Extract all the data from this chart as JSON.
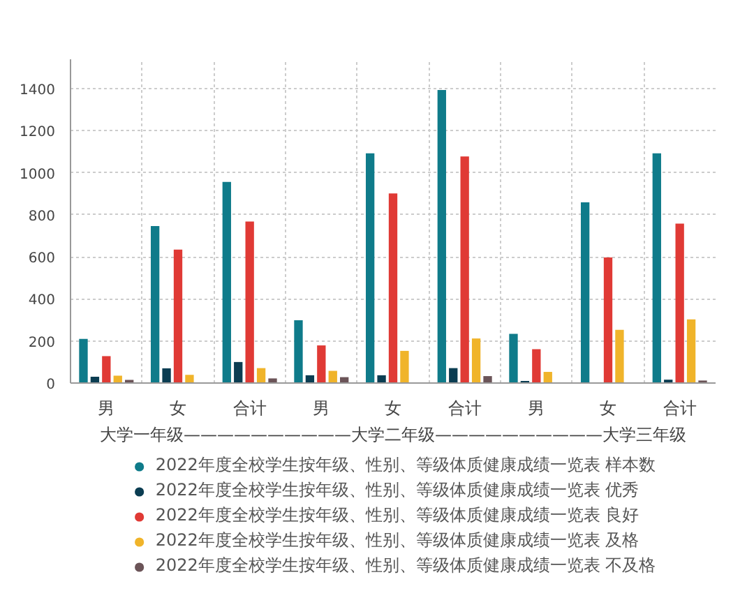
{
  "chart_data": {
    "type": "bar",
    "categories": [
      "男",
      "女",
      "合计",
      "男",
      "女",
      "合计",
      "男",
      "女",
      "合计"
    ],
    "xlabel": "大学一年级——————————大学二年级——————————大学三年级",
    "series": [
      {
        "name": "2022年度全校学生按年级、性别、等级体质健康成绩一览表 样本数",
        "color": "#0f7b8a",
        "values": [
          210,
          747,
          957,
          299,
          1093,
          1394,
          234,
          860,
          1093
        ]
      },
      {
        "name": "2022年度全校学生按年级、性别、等级体质健康成绩一览表 优秀",
        "color": "#0b3d52",
        "values": [
          30,
          70,
          100,
          37,
          37,
          71,
          10,
          0,
          16
        ]
      },
      {
        "name": "2022年度全校学生按年级、性别、等级体质健康成绩一览表 良好",
        "color": "#e03a35",
        "values": [
          128,
          635,
          768,
          179,
          902,
          1078,
          161,
          597,
          758
        ]
      },
      {
        "name": "2022年度全校学生按年级、性别、等级体质健康成绩一览表 及格",
        "color": "#f0b42a",
        "values": [
          35,
          39,
          71,
          58,
          153,
          212,
          53,
          253,
          303
        ]
      },
      {
        "name": "2022年度全校学生按年级、性别、等级体质健康成绩一览表 不及格",
        "color": "#6b5458",
        "values": [
          15,
          0,
          22,
          28,
          0,
          33,
          0,
          0,
          12
        ]
      }
    ],
    "ylim": [
      0,
      1540
    ],
    "yticks": [
      0,
      200,
      400,
      600,
      800,
      1000,
      1200,
      1400
    ],
    "grid": true,
    "legend": "bottom"
  }
}
